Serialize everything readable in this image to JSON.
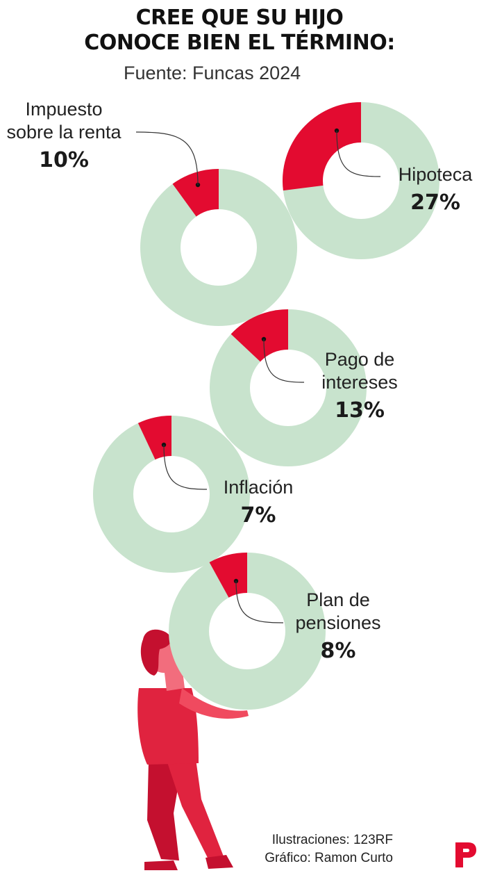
{
  "title_line1": "CREE QUE SU HIJO",
  "title_line2": "CONOCE BIEN EL TÉRMINO:",
  "subtitle": "Fuente: Funcas 2024",
  "credits": {
    "line1": "Ilustraciones: 123RF",
    "line2": "Gráfico: Ramon Curto"
  },
  "colors": {
    "highlight": "#e30b30",
    "rest": "#c8e3cd",
    "leader": "#333333"
  },
  "chart_data": {
    "type": "pie",
    "title": "CREE QUE SU HIJO CONOCE BIEN EL TÉRMINO:",
    "subtitle": "Fuente: Funcas 2024",
    "unit": "%",
    "series": [
      {
        "label_lines": [
          "Impuesto",
          "sobre la renta"
        ],
        "value": 10,
        "value_label": "10%"
      },
      {
        "label_lines": [
          "Hipoteca"
        ],
        "value": 27,
        "value_label": "27%"
      },
      {
        "label_lines": [
          "Pago de",
          "intereses"
        ],
        "value": 13,
        "value_label": "13%"
      },
      {
        "label_lines": [
          "Inflación"
        ],
        "value": 7,
        "value_label": "7%"
      },
      {
        "label_lines": [
          "Plan de",
          "pensiones"
        ],
        "value": 8,
        "value_label": "8%"
      }
    ]
  }
}
